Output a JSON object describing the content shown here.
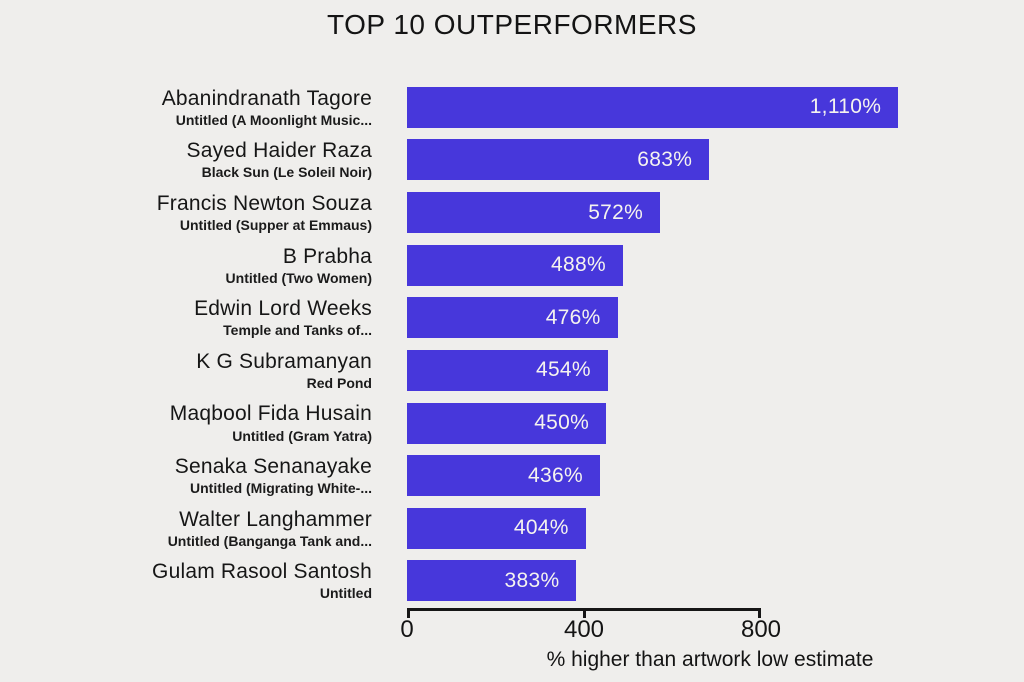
{
  "page": {
    "background_color": "#efeeec",
    "text_color": "#141414"
  },
  "chart_data": {
    "type": "bar",
    "orientation": "horizontal",
    "title": "TOP 10 OUTPERFORMERS",
    "xlabel": "% higher than artwork low estimate",
    "x_ticks": [
      0,
      400,
      800
    ],
    "x_tick_labels": [
      "0",
      "400",
      "800"
    ],
    "axis_max": 800,
    "grid": false,
    "legend": "none",
    "bar_color": "#4737db",
    "value_label_color": "#f5f3ef",
    "categories": [
      "Abanindranath Tagore",
      "Sayed Haider Raza",
      "Francis Newton Souza",
      "B Prabha",
      "Edwin Lord Weeks",
      "K G Subramanyan",
      "Maqbool Fida Husain",
      "Senaka Senanayake",
      "Walter Langhammer",
      "Gulam Rasool Santosh"
    ],
    "subtitles": [
      "Untitled (A Moonlight Music...",
      "Black Sun (Le Soleil Noir)",
      "Untitled (Supper at Emmaus)",
      "Untitled (Two Women)",
      "Temple and Tanks of...",
      "Red Pond",
      "Untitled (Gram Yatra)",
      "Untitled (Migrating White-...",
      "Untitled (Banganga Tank and...",
      "Untitled"
    ],
    "values": [
      1110,
      683,
      572,
      488,
      476,
      454,
      450,
      436,
      404,
      383
    ],
    "value_labels": [
      "1,110%",
      "683%",
      "572%",
      "488%",
      "476%",
      "454%",
      "450%",
      "436%",
      "404%",
      "383%"
    ]
  }
}
